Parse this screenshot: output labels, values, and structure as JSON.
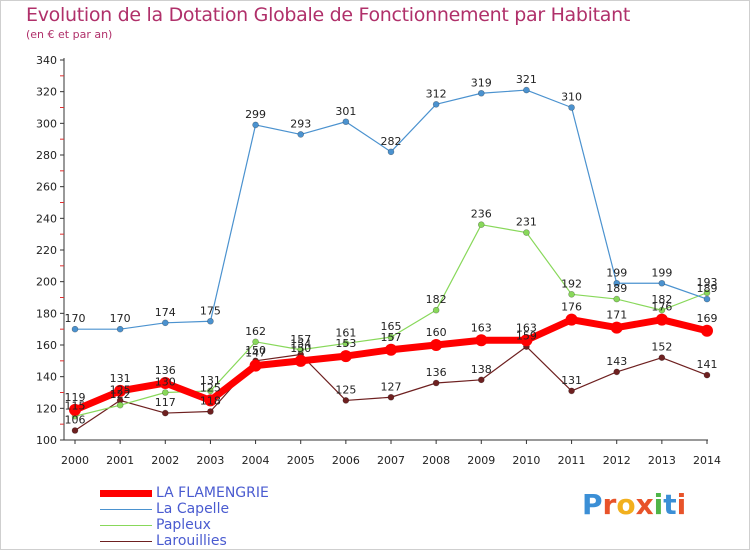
{
  "page": {
    "title": "Evolution de la Dotation Globale de Fonctionnement par Habitant",
    "subtitle": "(en € et par an)"
  },
  "logo": {
    "text": "Proxiti"
  },
  "chart_data": {
    "type": "line",
    "title": "Evolution de la Dotation Globale de Fonctionnement par Habitant",
    "subtitle": "(en € et par an)",
    "xlabel": "",
    "ylabel": "",
    "x": [
      "2000",
      "2001",
      "2002",
      "2003",
      "2004",
      "2005",
      "2006",
      "2007",
      "2008",
      "2009",
      "2010",
      "2011",
      "2012",
      "2013",
      "2014"
    ],
    "ylim": [
      100,
      340
    ],
    "yticks": [
      100,
      120,
      140,
      160,
      180,
      200,
      220,
      240,
      260,
      280,
      300,
      320,
      340
    ],
    "grid": false,
    "legend_position": "bottom-left",
    "series": [
      {
        "name": "LA FLAMENGRIE",
        "color": "#ff0000",
        "values": [
          119,
          131,
          136,
          125,
          147,
          150,
          153,
          157,
          160,
          163,
          163,
          176,
          171,
          176,
          169
        ],
        "labels": [
          "119",
          "131",
          "136",
          "125",
          "147",
          "150",
          "153",
          "157",
          "160",
          "163",
          "163",
          "176",
          "171",
          "176",
          "169"
        ]
      },
      {
        "name": "La Capelle",
        "color": "#4b92cf",
        "values": [
          170,
          170,
          174,
          175,
          299,
          293,
          301,
          282,
          312,
          319,
          321,
          310,
          199,
          199,
          189
        ],
        "labels": [
          "170",
          "170",
          "174",
          "175",
          "299",
          "293",
          "301",
          "282",
          "312",
          "319",
          "321",
          "310",
          "199",
          "199",
          "189"
        ]
      },
      {
        "name": "Papleux",
        "color": "#88d85a",
        "values": [
          115,
          122,
          130,
          131,
          162,
          157,
          161,
          165,
          182,
          236,
          231,
          192,
          189,
          182,
          193
        ],
        "labels": [
          "115",
          "122",
          "130",
          "131",
          "162",
          "157",
          "161",
          "165",
          "182",
          "236",
          "231",
          "192",
          "189",
          "182",
          "193"
        ]
      },
      {
        "name": "Larouillies",
        "color": "#6e2020",
        "values": [
          106,
          125,
          117,
          118,
          150,
          154,
          125,
          127,
          136,
          138,
          159,
          131,
          143,
          152,
          141
        ],
        "labels": [
          "106",
          "125",
          "117",
          "118",
          "150",
          "154",
          "125",
          "127",
          "136",
          "138",
          "159",
          "131",
          "143",
          "152",
          "141"
        ]
      }
    ]
  }
}
